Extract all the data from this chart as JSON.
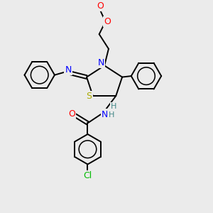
{
  "bg_color": "#ebebeb",
  "atom_colors": {
    "N": "#0000ff",
    "O": "#ff0000",
    "S": "#aaaa00",
    "Cl": "#00bb00",
    "C": "#000000",
    "H": "#448888"
  },
  "bond_color": "#000000",
  "bond_width": 1.4
}
